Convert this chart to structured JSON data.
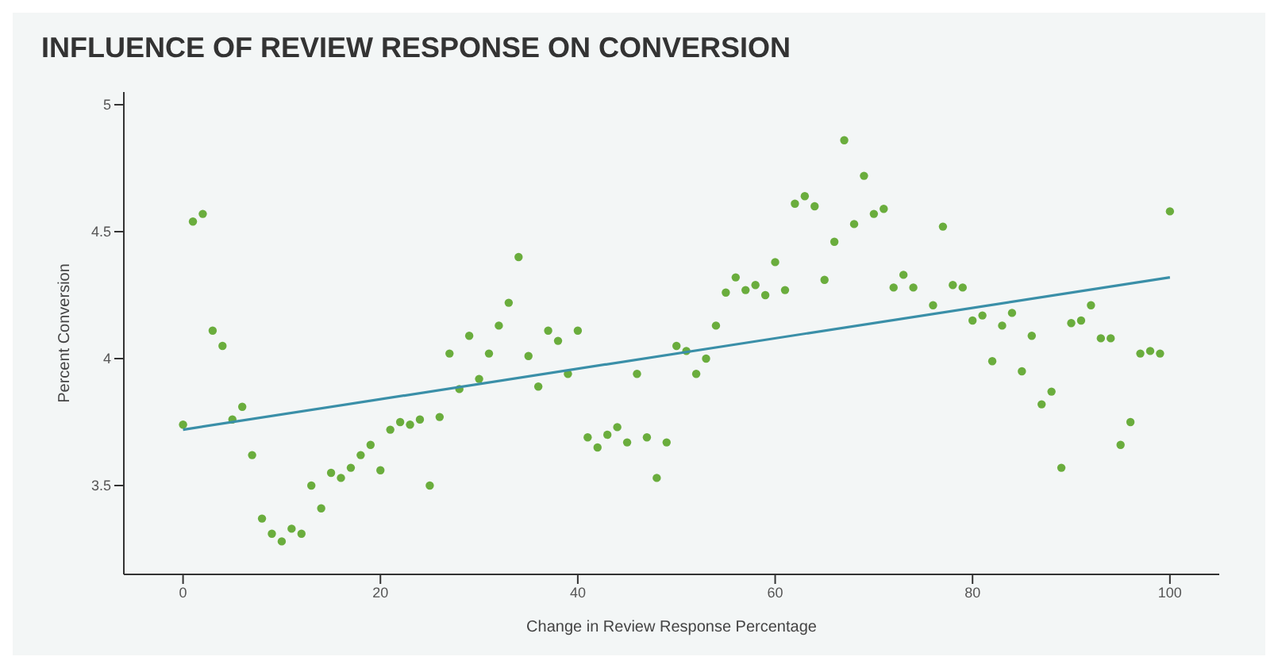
{
  "chart_data": {
    "type": "scatter",
    "title": "INFLUENCE OF REVIEW RESPONSE ON CONVERSION",
    "xlabel": "Change in Review Response Percentage",
    "ylabel": "Percent Conversion",
    "xlim": [
      -6,
      105
    ],
    "xticks": [
      0,
      20,
      40,
      60,
      80,
      100
    ],
    "ylim": [
      3.15,
      5.05
    ],
    "yticks": [
      3.5,
      4,
      4.5,
      5
    ],
    "grid": false,
    "series": [
      {
        "marker": "circle",
        "color": "#6aad3d",
        "x": [
          0,
          1,
          2,
          3,
          4,
          5,
          6,
          7,
          8,
          9,
          10,
          11,
          12,
          13,
          14,
          15,
          16,
          17,
          18,
          19,
          20,
          21,
          22,
          23,
          24,
          25,
          26,
          27,
          28,
          29,
          30,
          31,
          32,
          33,
          34,
          35,
          36,
          37,
          38,
          39,
          40,
          41,
          42,
          43,
          44,
          45,
          46,
          47,
          48,
          49,
          50,
          51,
          52,
          53,
          54,
          55,
          56,
          57,
          58,
          59,
          60,
          61,
          62,
          63,
          64,
          65,
          66,
          67,
          68,
          69,
          70,
          71,
          72,
          73,
          74,
          76,
          77,
          78,
          79,
          80,
          81,
          82,
          83,
          84,
          85,
          86,
          87,
          88,
          89,
          90,
          91,
          92,
          93,
          94,
          95,
          96,
          97,
          98,
          99,
          100
        ],
        "values": [
          3.74,
          4.54,
          4.57,
          4.11,
          4.05,
          3.76,
          3.81,
          3.62,
          3.37,
          3.31,
          3.28,
          3.33,
          3.31,
          3.5,
          3.41,
          3.55,
          3.53,
          3.57,
          3.62,
          3.66,
          3.56,
          3.72,
          3.75,
          3.74,
          3.76,
          3.5,
          3.77,
          4.02,
          3.88,
          4.09,
          3.92,
          4.02,
          4.13,
          4.22,
          4.4,
          4.01,
          3.89,
          4.11,
          4.07,
          3.94,
          4.11,
          3.69,
          3.65,
          3.7,
          3.73,
          3.67,
          3.94,
          3.69,
          3.53,
          3.67,
          4.05,
          4.03,
          3.94,
          4.0,
          4.13,
          4.26,
          4.32,
          4.27,
          4.29,
          4.25,
          4.38,
          4.27,
          4.61,
          4.64,
          4.6,
          4.31,
          4.46,
          4.86,
          4.53,
          4.72,
          4.57,
          4.59,
          4.28,
          4.33,
          4.28,
          4.21,
          4.52,
          4.29,
          4.28,
          4.15,
          4.17,
          3.99,
          4.13,
          4.18,
          3.95,
          4.09,
          3.82,
          3.87,
          3.57,
          4.14,
          4.15,
          4.21,
          4.08,
          4.08,
          3.66,
          3.75,
          4.02,
          4.03,
          4.02,
          4.58
        ]
      },
      {
        "type": "line",
        "color": "#3a8fa8",
        "x": [
          0,
          100
        ],
        "values": [
          3.72,
          4.32
        ]
      }
    ]
  }
}
